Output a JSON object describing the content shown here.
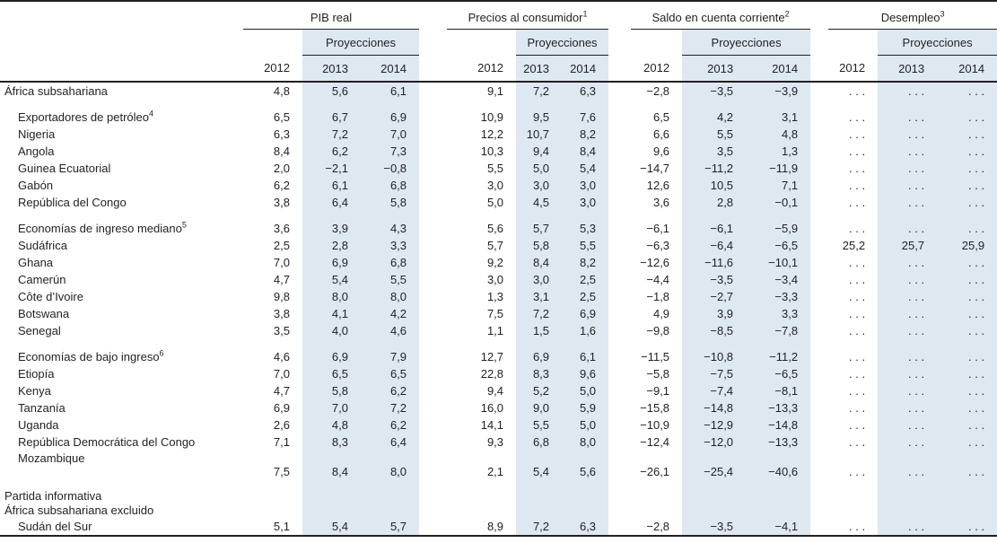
{
  "table": {
    "groups": [
      {
        "title": "PIB real",
        "sup": ""
      },
      {
        "title": "Precios al consumidor",
        "sup": "1"
      },
      {
        "title": "Saldo en cuenta corriente",
        "sup": "2"
      },
      {
        "title": "Desempleo",
        "sup": "3"
      }
    ],
    "projections_label": "Proyecciones",
    "years": [
      "2012",
      "2013",
      "2014"
    ],
    "rows": [
      {
        "label": "África subsahariana",
        "sup": "",
        "bold": true,
        "indent": 0,
        "gap": false,
        "tall": false,
        "values": [
          "4,8",
          "5,6",
          "6,1",
          "9,1",
          "7,2",
          "6,3",
          "−2,8",
          "−3,5",
          "−3,9",
          ". . .",
          ". . .",
          ". . ."
        ]
      },
      {
        "label": "Exportadores de petróleo",
        "sup": "4",
        "bold": true,
        "indent": 1,
        "gap": true,
        "tall": false,
        "values": [
          "6,5",
          "6,7",
          "6,9",
          "10,9",
          "9,5",
          "7,6",
          "6,5",
          "4,2",
          "3,1",
          ". . .",
          ". . .",
          ". . ."
        ]
      },
      {
        "label": "Nigeria",
        "sup": "",
        "bold": false,
        "indent": 1,
        "gap": false,
        "tall": false,
        "values": [
          "6,3",
          "7,2",
          "7,0",
          "12,2",
          "10,7",
          "8,2",
          "6,6",
          "5,5",
          "4,8",
          ". . .",
          ". . .",
          ". . ."
        ]
      },
      {
        "label": "Angola",
        "sup": "",
        "bold": false,
        "indent": 1,
        "gap": false,
        "tall": false,
        "values": [
          "8,4",
          "6,2",
          "7,3",
          "10,3",
          "9,4",
          "8,4",
          "9,6",
          "3,5",
          "1,3",
          ". . .",
          ". . .",
          ". . ."
        ]
      },
      {
        "label": "Guinea Ecuatorial",
        "sup": "",
        "bold": false,
        "indent": 1,
        "gap": false,
        "tall": false,
        "values": [
          "2,0",
          "−2,1",
          "−0,8",
          "5,5",
          "5,0",
          "5,4",
          "−14,7",
          "−11,2",
          "−11,9",
          ". . .",
          ". . .",
          ". . ."
        ]
      },
      {
        "label": "Gabón",
        "sup": "",
        "bold": false,
        "indent": 1,
        "gap": false,
        "tall": false,
        "values": [
          "6,2",
          "6,1",
          "6,8",
          "3,0",
          "3,0",
          "3,0",
          "12,6",
          "10,5",
          "7,1",
          ". . .",
          ". . .",
          ". . ."
        ]
      },
      {
        "label": "República del Congo",
        "sup": "",
        "bold": false,
        "indent": 1,
        "gap": false,
        "tall": false,
        "values": [
          "3,8",
          "6,4",
          "5,8",
          "5,0",
          "4,5",
          "3,0",
          "3,6",
          "2,8",
          "−0,1",
          ". . .",
          ". . .",
          ". . ."
        ]
      },
      {
        "label": "Economías de ingreso mediano",
        "sup": "5",
        "bold": true,
        "indent": 1,
        "gap": true,
        "tall": false,
        "values": [
          "3,6",
          "3,9",
          "4,3",
          "5,6",
          "5,7",
          "5,3",
          "−6,1",
          "−6,1",
          "−5,9",
          ". . .",
          ". . .",
          ". . ."
        ]
      },
      {
        "label": "Sudáfrica",
        "sup": "",
        "bold": false,
        "indent": 1,
        "gap": false,
        "tall": false,
        "values": [
          "2,5",
          "2,8",
          "3,3",
          "5,7",
          "5,8",
          "5,5",
          "−6,3",
          "−6,4",
          "−6,5",
          "25,2",
          "25,7",
          "25,9"
        ]
      },
      {
        "label": "Ghana",
        "sup": "",
        "bold": false,
        "indent": 1,
        "gap": false,
        "tall": false,
        "values": [
          "7,0",
          "6,9",
          "6,8",
          "9,2",
          "8,4",
          "8,2",
          "−12,6",
          "−11,6",
          "−10,1",
          ". . .",
          ". . .",
          ". . ."
        ]
      },
      {
        "label": "Camerún",
        "sup": "",
        "bold": false,
        "indent": 1,
        "gap": false,
        "tall": false,
        "values": [
          "4,7",
          "5,4",
          "5,5",
          "3,0",
          "3,0",
          "2,5",
          "−4,4",
          "−3,5",
          "−3,4",
          ". . .",
          ". . .",
          ". . ."
        ]
      },
      {
        "label": "Côte d’Ivoire",
        "sup": "",
        "bold": false,
        "indent": 1,
        "gap": false,
        "tall": false,
        "values": [
          "9,8",
          "8,0",
          "8,0",
          "1,3",
          "3,1",
          "2,5",
          "−1,8",
          "−2,7",
          "−3,3",
          ". . .",
          ". . .",
          ". . ."
        ]
      },
      {
        "label": "Botswana",
        "sup": "",
        "bold": false,
        "indent": 1,
        "gap": false,
        "tall": false,
        "values": [
          "3,8",
          "4,1",
          "4,2",
          "7,5",
          "7,2",
          "6,9",
          "4,9",
          "3,9",
          "3,3",
          ". . .",
          ". . .",
          ". . ."
        ]
      },
      {
        "label": "Senegal",
        "sup": "",
        "bold": false,
        "indent": 1,
        "gap": false,
        "tall": false,
        "values": [
          "3,5",
          "4,0",
          "4,6",
          "1,1",
          "1,5",
          "1,6",
          "−9,8",
          "−8,5",
          "−7,8",
          ". . .",
          ". . .",
          ". . ."
        ]
      },
      {
        "label": "Economías de bajo ingreso",
        "sup": "6",
        "bold": true,
        "indent": 1,
        "gap": true,
        "tall": false,
        "values": [
          "4,6",
          "6,9",
          "7,9",
          "12,7",
          "6,9",
          "6,1",
          "−11,5",
          "−10,8",
          "−11,2",
          ". . .",
          ". . .",
          ". . ."
        ]
      },
      {
        "label": "Etiopía",
        "sup": "",
        "bold": false,
        "indent": 1,
        "gap": false,
        "tall": false,
        "values": [
          "7,0",
          "6,5",
          "6,5",
          "22,8",
          "8,3",
          "9,6",
          "−5,8",
          "−7,5",
          "−6,5",
          ". . .",
          ". . .",
          ". . ."
        ]
      },
      {
        "label": "Kenya",
        "sup": "",
        "bold": false,
        "indent": 1,
        "gap": false,
        "tall": false,
        "values": [
          "4,7",
          "5,8",
          "6,2",
          "9,4",
          "5,2",
          "5,0",
          "−9,1",
          "−7,4",
          "−8,1",
          ". . .",
          ". . .",
          ". . ."
        ]
      },
      {
        "label": "Tanzanía",
        "sup": "",
        "bold": false,
        "indent": 1,
        "gap": false,
        "tall": false,
        "values": [
          "6,9",
          "7,0",
          "7,2",
          "16,0",
          "9,0",
          "5,9",
          "−15,8",
          "−14,8",
          "−13,3",
          ". . .",
          ". . .",
          ". . ."
        ]
      },
      {
        "label": "Uganda",
        "sup": "",
        "bold": false,
        "indent": 1,
        "gap": false,
        "tall": false,
        "values": [
          "2,6",
          "4,8",
          "6,2",
          "14,1",
          "5,5",
          "5,0",
          "−10,9",
          "−12,9",
          "−14,8",
          ". . .",
          ". . .",
          ". . ."
        ]
      },
      {
        "label": "República Democrática del Congo",
        "sup": "",
        "bold": false,
        "indent": 1,
        "gap": false,
        "tall": false,
        "values": [
          "7,1",
          "8,3",
          "6,4",
          "9,3",
          "6,8",
          "8,0",
          "−12,4",
          "−12,0",
          "−13,3",
          ". . .",
          ". . .",
          ". . ."
        ]
      },
      {
        "label": "Mozambique",
        "sup": "",
        "bold": false,
        "indent": 1,
        "gap": false,
        "tall": true,
        "values": [
          "7,5",
          "8,4",
          "8,0",
          "2,1",
          "5,4",
          "5,6",
          "−26,1",
          "−25,4",
          "−40,6",
          ". . .",
          ". . .",
          ". . ."
        ]
      },
      {
        "label": "Partida informativa",
        "sup": "",
        "bold": false,
        "indent": 0,
        "gap": true,
        "tall": false,
        "values": null
      },
      {
        "label": "África subsahariana excluido",
        "sup": "",
        "bold": false,
        "indent": 0,
        "gap": false,
        "tall": false,
        "values": null
      },
      {
        "label": "Sudán del Sur",
        "sup": "",
        "bold": false,
        "indent": 1,
        "gap": false,
        "tall": false,
        "values": [
          "5,1",
          "5,4",
          "5,7",
          "8,9",
          "7,2",
          "6,3",
          "−2,8",
          "−3,5",
          "−4,1",
          ". . .",
          ". . .",
          ". . ."
        ]
      }
    ]
  },
  "colors": {
    "shade": "#dde8f1",
    "rule": "#231f20",
    "text": "#231f20"
  }
}
